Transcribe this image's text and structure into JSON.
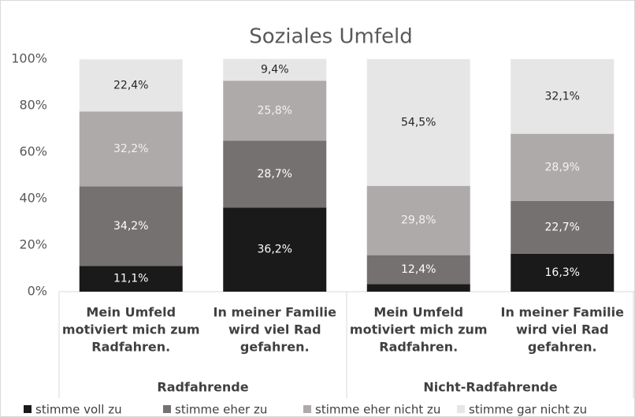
{
  "chart_data": {
    "type": "stacked_bar",
    "title": "Soziales Umfeld",
    "categories": [
      [
        "Mein Umfeld",
        "motiviert mich zum",
        "Radfahren."
      ],
      [
        "In meiner Familie",
        "wird viel Rad",
        "gefahren."
      ],
      [
        "Mein Umfeld",
        "motiviert mich zum",
        "Radfahren."
      ],
      [
        "In meiner Familie",
        "wird viel Rad",
        "gefahren."
      ]
    ],
    "groups": [
      {
        "name": "Radfahrende",
        "span": [
          0,
          1
        ]
      },
      {
        "name": "Nicht-Radfahrende",
        "span": [
          2,
          3
        ]
      }
    ],
    "series": [
      {
        "name": "stimme voll zu",
        "color": "#1a1a1a",
        "values": [
          11.1,
          36.2,
          3.3,
          16.3
        ],
        "value_labels": [
          "11,1%",
          "36,2%",
          null,
          "16,3%"
        ]
      },
      {
        "name": "stimme eher zu",
        "color": "#767171",
        "values": [
          34.2,
          28.7,
          12.4,
          22.7
        ],
        "value_labels": [
          "34,2%",
          "28,7%",
          "12,4%",
          "22,7%"
        ]
      },
      {
        "name": "stimme eher nicht zu",
        "color": "#aeaaaa",
        "values": [
          32.2,
          25.8,
          29.8,
          28.9
        ],
        "value_labels": [
          "32,2%",
          "25,8%",
          "29,8%",
          "28,9%"
        ]
      },
      {
        "name": "stimme gar nicht zu",
        "color": "#e7e6e6",
        "values": [
          22.4,
          9.4,
          54.5,
          32.1
        ],
        "value_labels": [
          "22,4%",
          "9,4%",
          "54,5%",
          "32,1%"
        ]
      }
    ],
    "ylim": [
      0,
      100
    ],
    "yticks": [
      {
        "value": 0,
        "label": "0%"
      },
      {
        "value": 20,
        "label": "20%"
      },
      {
        "value": 40,
        "label": "40%"
      },
      {
        "value": 60,
        "label": "60%"
      },
      {
        "value": 80,
        "label": "80%"
      },
      {
        "value": 100,
        "label": "100%"
      }
    ],
    "legend": "bottom"
  }
}
